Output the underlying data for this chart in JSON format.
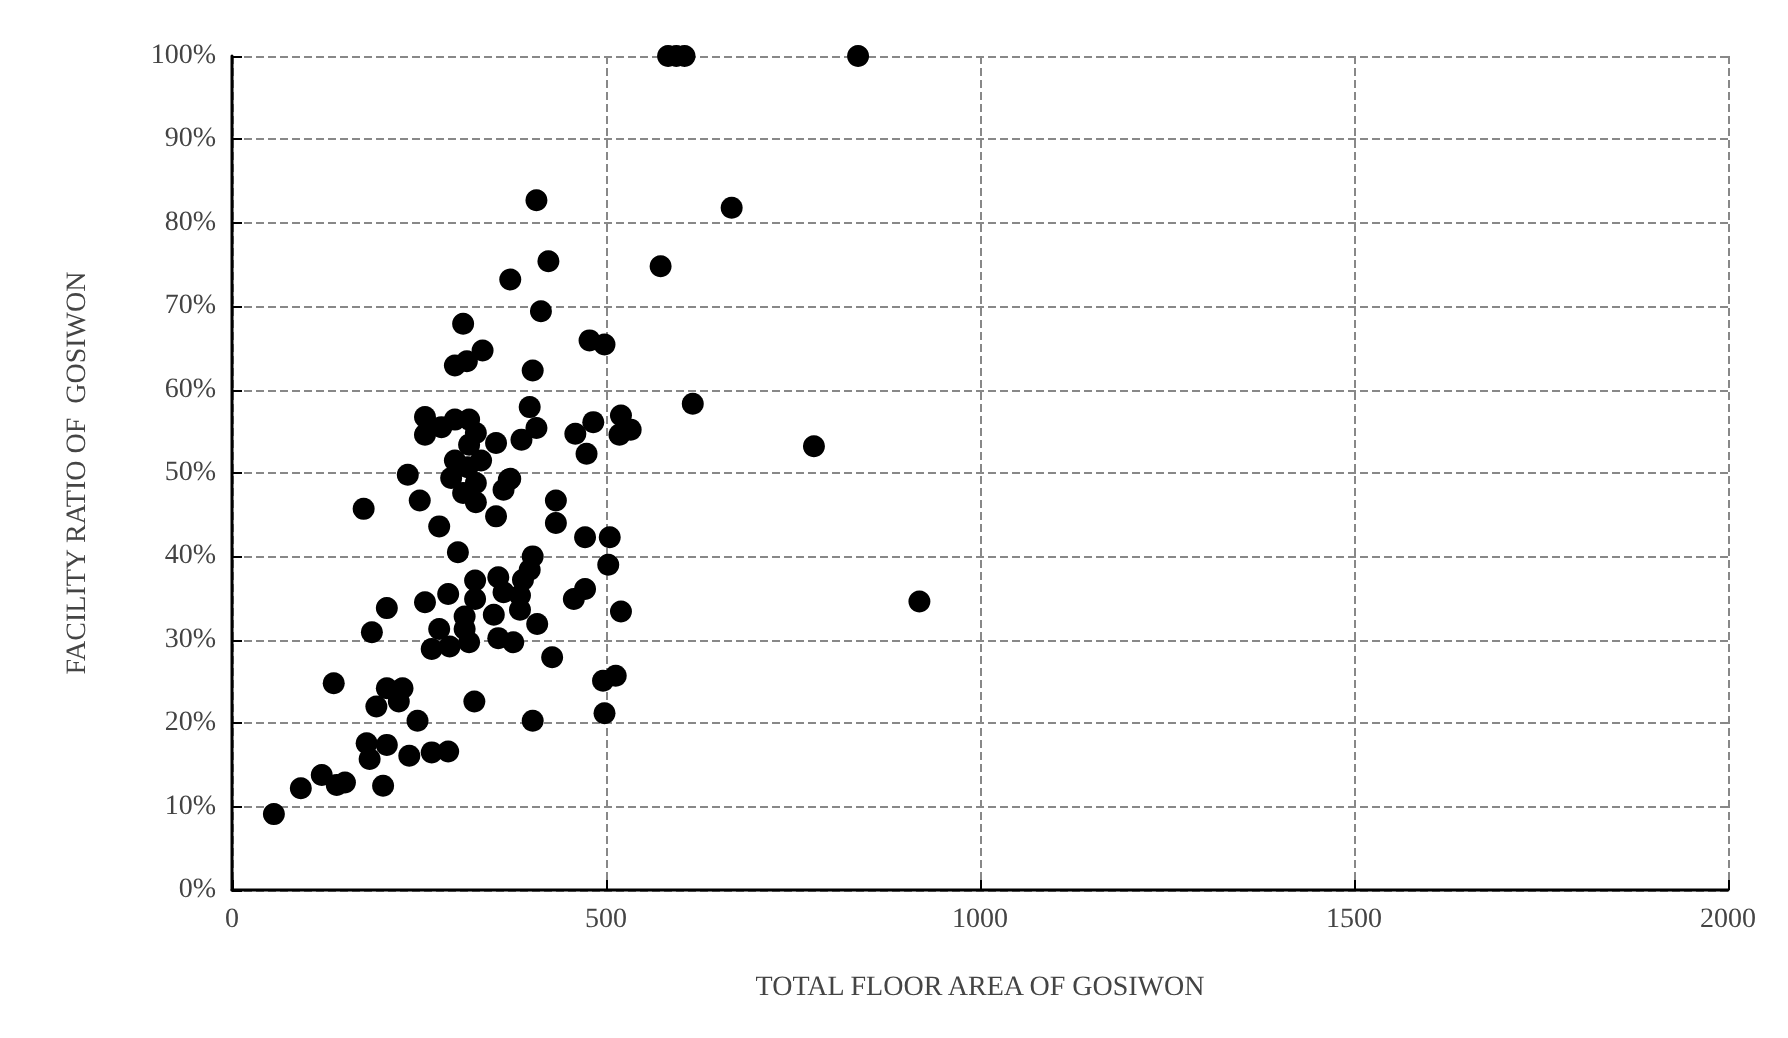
{
  "chart_data": {
    "type": "scatter",
    "xlabel": "TOTAL FLOOR AREA OF GOSIWON",
    "ylabel": "FACILITY RATIO OF  GOSIWON",
    "marker": "circle",
    "grid": true,
    "series": [
      {
        "color": "#000000",
        "x": [
          56,
          92,
          120,
          140,
          151,
          202,
          180,
          184,
          207,
          237,
          267,
          289,
          248,
          193,
          207,
          228,
          223,
          136,
          324,
          402,
          498,
          496,
          513,
          428,
          187,
          207,
          267,
          291,
          317,
          356,
          376,
          277,
          311,
          311,
          350,
          385,
          408,
          258,
          289,
          325,
          325,
          356,
          363,
          385,
          389,
          402,
          398,
          457,
          472,
          520,
          503,
          505,
          472,
          302,
          277,
          176,
          433,
          433,
          353,
          251,
          235,
          293,
          309,
          326,
          363,
          370,
          326,
          407,
          668,
          423,
          573,
          372,
          413,
          309,
          335,
          298,
          314,
          402,
          478,
          498,
          398,
          616,
          258,
          298,
          317,
          407,
          483,
          520,
          533,
          518,
          258,
          280,
          326,
          317,
          353,
          387,
          459,
          474,
          298,
          333,
          315,
          372,
          583,
          594,
          605,
          837,
          778,
          919
        ],
        "values": [
          9.1,
          12.2,
          13.8,
          12.6,
          12.9,
          12.5,
          17.6,
          15.7,
          17.4,
          16.1,
          16.5,
          16.6,
          20.3,
          22.0,
          24.2,
          24.2,
          22.6,
          24.8,
          22.6,
          20.3,
          21.2,
          25.1,
          25.7,
          27.9,
          30.9,
          33.8,
          28.9,
          29.2,
          29.7,
          30.2,
          29.7,
          31.3,
          31.3,
          32.8,
          33.0,
          33.6,
          31.9,
          34.5,
          35.5,
          34.9,
          37.1,
          37.5,
          35.7,
          35.3,
          37.2,
          40.0,
          38.4,
          34.9,
          36.1,
          33.4,
          39.0,
          42.3,
          42.3,
          40.5,
          43.6,
          45.7,
          46.7,
          44.0,
          44.8,
          46.7,
          49.8,
          49.4,
          47.6,
          46.5,
          48.0,
          49.2,
          48.8,
          82.7,
          81.8,
          75.4,
          74.8,
          73.2,
          69.4,
          67.9,
          64.7,
          62.9,
          63.4,
          62.3,
          65.9,
          65.4,
          57.9,
          58.3,
          56.7,
          56.4,
          56.4,
          55.4,
          56.1,
          56.9,
          55.2,
          54.6,
          54.6,
          55.5,
          54.8,
          53.4,
          53.6,
          54.0,
          54.7,
          52.3,
          51.5,
          51.5,
          50.7,
          49.3,
          100,
          100,
          100,
          100,
          53.2,
          34.6
        ]
      }
    ],
    "xlim": [
      0,
      2000
    ],
    "xticks": [
      0,
      500,
      1000,
      1500,
      2000
    ],
    "ylim": [
      0,
      100
    ],
    "yticks": [
      {
        "value": 0,
        "label": "0%"
      },
      {
        "value": 10,
        "label": "10%"
      },
      {
        "value": 20,
        "label": "20%"
      },
      {
        "value": 30,
        "label": "30%"
      },
      {
        "value": 40,
        "label": "40%"
      },
      {
        "value": 50,
        "label": "50%"
      },
      {
        "value": 60,
        "label": "60%"
      },
      {
        "value": 70,
        "label": "70%"
      },
      {
        "value": 80,
        "label": "80%"
      },
      {
        "value": 90,
        "label": "90%"
      },
      {
        "value": 100,
        "label": "100%"
      }
    ]
  }
}
